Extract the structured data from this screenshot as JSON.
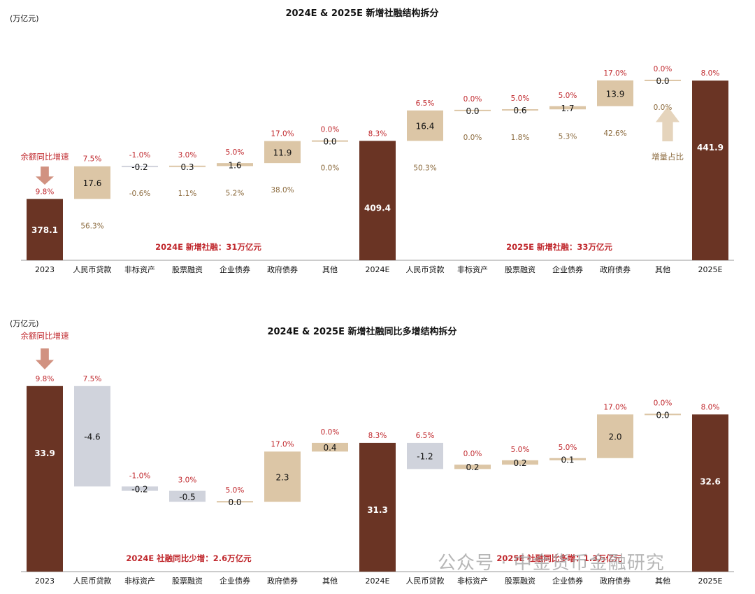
{
  "watermark": "公众号 · 中金货币金融研究",
  "colors": {
    "endpoint": "#6a3424",
    "increase": "#dcc6a6",
    "decrease": "#d0d3dc",
    "pct_red": "#c0282d",
    "share_brown": "#8b6a3d",
    "axis": "#999999"
  },
  "chart_data": [
    {
      "type": "bar",
      "title": "2024E & 2025E 新增社融结构拆分",
      "unit_label": "(万亿元)",
      "categories": [
        "2023",
        "人民币贷款",
        "非标资产",
        "股票融资",
        "企业债券",
        "政府债券",
        "其他",
        "2024E",
        "人民币贷款",
        "非标资产",
        "股票融资",
        "企业债券",
        "政府债券",
        "其他",
        "2025E"
      ],
      "kinds": [
        "total",
        "delta",
        "delta",
        "delta",
        "delta",
        "delta",
        "delta",
        "total",
        "delta",
        "delta",
        "delta",
        "delta",
        "delta",
        "delta",
        "total"
      ],
      "values": [
        "378.1",
        "17.6",
        "-0.2",
        "0.3",
        "1.6",
        "11.9",
        "0.0",
        "409.4",
        "16.4",
        "0.0",
        "0.6",
        "1.7",
        "13.9",
        "0.0",
        "441.9"
      ],
      "yoy_growth": [
        "9.8%",
        "7.5%",
        "-1.0%",
        "3.0%",
        "5.0%",
        "17.0%",
        "0.0%",
        "8.3%",
        "6.5%",
        "0.0%",
        "5.0%",
        "5.0%",
        "17.0%",
        "0.0%",
        "8.0%"
      ],
      "increment_share": [
        "",
        "56.3%",
        "-0.6%",
        "1.1%",
        "5.2%",
        "38.0%",
        "0.0%",
        "",
        "50.3%",
        "0.0%",
        "1.8%",
        "5.3%",
        "42.6%",
        "0.0%",
        ""
      ],
      "annotations": [
        {
          "text": "余额同比增速"
        },
        {
          "text": "增量占比"
        },
        {
          "text": "2024E 新增社融：31万亿元"
        },
        {
          "text": "2025E 新增社融：33万亿元"
        }
      ]
    },
    {
      "type": "bar",
      "title": "2024E & 2025E 新增社融同比多增结构拆分",
      "unit_label": "(万亿元)",
      "categories": [
        "2023",
        "人民币贷款",
        "非标资产",
        "股票融资",
        "企业债券",
        "政府债券",
        "其他",
        "2024E",
        "人民币贷款",
        "非标资产",
        "股票融资",
        "企业债券",
        "政府债券",
        "其他",
        "2025E"
      ],
      "kinds": [
        "total",
        "delta",
        "delta",
        "delta",
        "delta",
        "delta",
        "delta",
        "total",
        "delta",
        "delta",
        "delta",
        "delta",
        "delta",
        "delta",
        "total"
      ],
      "values": [
        "33.9",
        "-4.6",
        "-0.2",
        "-0.5",
        "0.0",
        "2.3",
        "0.4",
        "31.3",
        "-1.2",
        "0.2",
        "0.2",
        "0.1",
        "2.0",
        "0.0",
        "32.6"
      ],
      "yoy_growth": [
        "9.8%",
        "7.5%",
        "-1.0%",
        "3.0%",
        "5.0%",
        "17.0%",
        "0.0%",
        "8.3%",
        "6.5%",
        "0.0%",
        "5.0%",
        "5.0%",
        "17.0%",
        "0.0%",
        "8.0%"
      ],
      "annotations": [
        {
          "text": "余额同比增速"
        },
        {
          "text": "2024E 社融同比少增：2.6万亿元"
        },
        {
          "text": "2025E 社融同比多增：1.3万亿元"
        }
      ]
    }
  ]
}
